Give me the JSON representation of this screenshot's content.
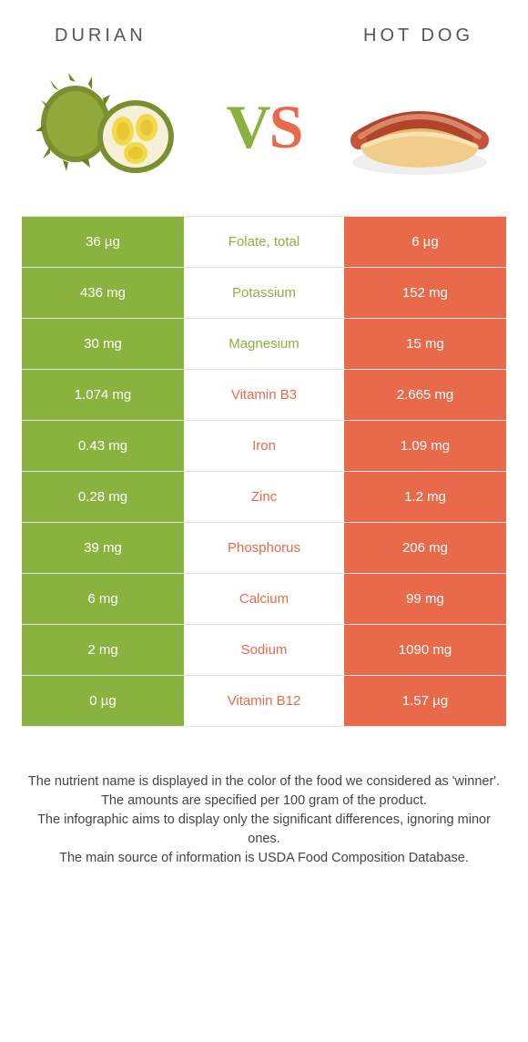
{
  "colors": {
    "green": "#8ab23f",
    "orange": "#e86a4a",
    "text_dark": "#444444",
    "title_gray": "#555555",
    "row_border": "#e6e6e6"
  },
  "food_left": {
    "title": "DURIAN"
  },
  "food_right": {
    "title": "HOT DOG"
  },
  "vs_label": {
    "v": "V",
    "s": "S"
  },
  "rows": [
    {
      "nutrient": "Folate, total",
      "left": "36 µg",
      "right": "6 µg",
      "winner": "left"
    },
    {
      "nutrient": "Potassium",
      "left": "436 mg",
      "right": "152 mg",
      "winner": "left"
    },
    {
      "nutrient": "Magnesium",
      "left": "30 mg",
      "right": "15 mg",
      "winner": "left"
    },
    {
      "nutrient": "Vitamin B3",
      "left": "1.074 mg",
      "right": "2.665 mg",
      "winner": "right"
    },
    {
      "nutrient": "Iron",
      "left": "0.43 mg",
      "right": "1.09 mg",
      "winner": "right"
    },
    {
      "nutrient": "Zinc",
      "left": "0.28 mg",
      "right": "1.2 mg",
      "winner": "right"
    },
    {
      "nutrient": "Phosphorus",
      "left": "39 mg",
      "right": "206 mg",
      "winner": "right"
    },
    {
      "nutrient": "Calcium",
      "left": "6 mg",
      "right": "99 mg",
      "winner": "right"
    },
    {
      "nutrient": "Sodium",
      "left": "2 mg",
      "right": "1090 mg",
      "winner": "right"
    },
    {
      "nutrient": "Vitamin B12",
      "left": "0 µg",
      "right": "1.57 µg",
      "winner": "right"
    }
  ],
  "footer_lines": [
    "The nutrient name is displayed in the color of the food we considered as 'winner'.",
    "The amounts are specified per 100 gram of the product.",
    "The infographic aims to display only the significant differences, ignoring minor ones.",
    "The main source of information is USDA Food Composition Database."
  ]
}
